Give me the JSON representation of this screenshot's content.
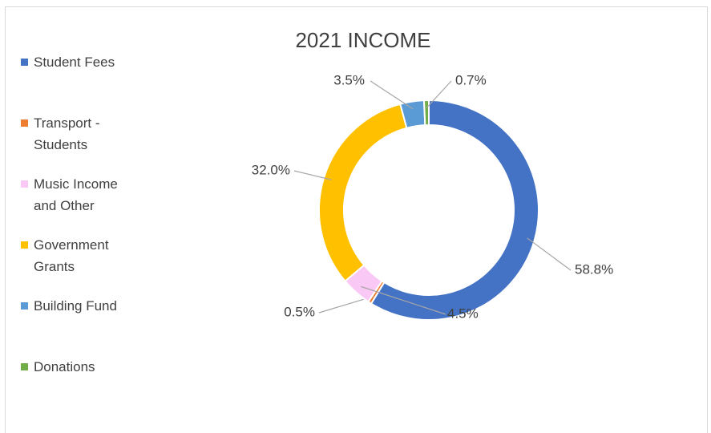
{
  "chart_data": {
    "type": "donut",
    "title": "2021 INCOME",
    "categories": [
      "Student Fees",
      "Transport - Students",
      "Music Income and Other",
      "Government Grants",
      "Building Fund",
      "Donations"
    ],
    "values": [
      58.8,
      0.5,
      4.5,
      32.0,
      3.5,
      0.7
    ],
    "value_labels": [
      "58.8%",
      "0.5%",
      "4.5%",
      "32.0%",
      "3.5%",
      "0.7%"
    ],
    "colors": [
      "#4472c4",
      "#ed7d31",
      "#f9c8f4",
      "#ffc000",
      "#5b9bd5",
      "#70ad47"
    ],
    "legend": "left"
  }
}
